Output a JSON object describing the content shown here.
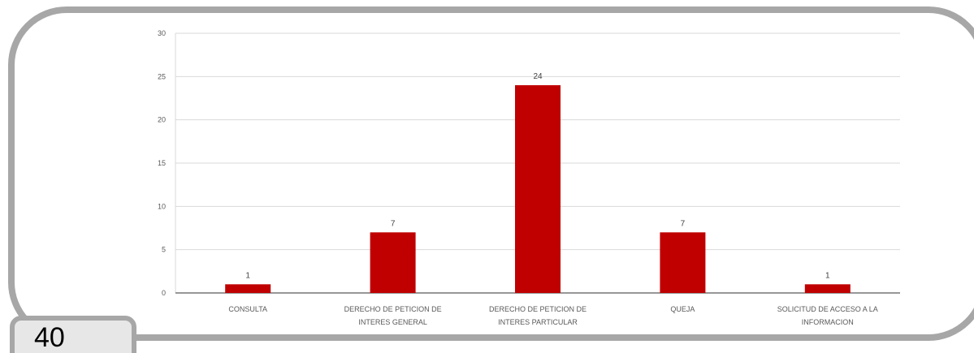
{
  "page": {
    "number": "40"
  },
  "colors": {
    "bar": "#c00000",
    "frame": "#a7a7a7",
    "grid": "#d9d9d9",
    "axis": "#595959"
  },
  "chart_data": {
    "type": "bar",
    "categories": [
      "CONSULTA",
      "DERECHO DE PETICION DE INTERES GENERAL",
      "DERECHO DE PETICION DE INTERES PARTICULAR",
      "QUEJA",
      "SOLICITUD DE ACCESO A LA INFORMACION"
    ],
    "category_lines": [
      [
        "CONSULTA"
      ],
      [
        "DERECHO DE PETICION DE",
        "INTERES GENERAL"
      ],
      [
        "DERECHO DE PETICION DE",
        "INTERES PARTICULAR"
      ],
      [
        "QUEJA"
      ],
      [
        "SOLICITUD DE ACCESO A LA",
        "INFORMACION"
      ]
    ],
    "values": [
      1,
      7,
      24,
      7,
      1
    ],
    "data_labels": [
      "1",
      "7",
      "24",
      "7",
      "1"
    ],
    "title": "",
    "xlabel": "",
    "ylabel": "",
    "ylim": [
      0,
      30
    ],
    "yticks": [
      0,
      5,
      10,
      15,
      20,
      25,
      30
    ],
    "grid": true,
    "legend": "none"
  }
}
